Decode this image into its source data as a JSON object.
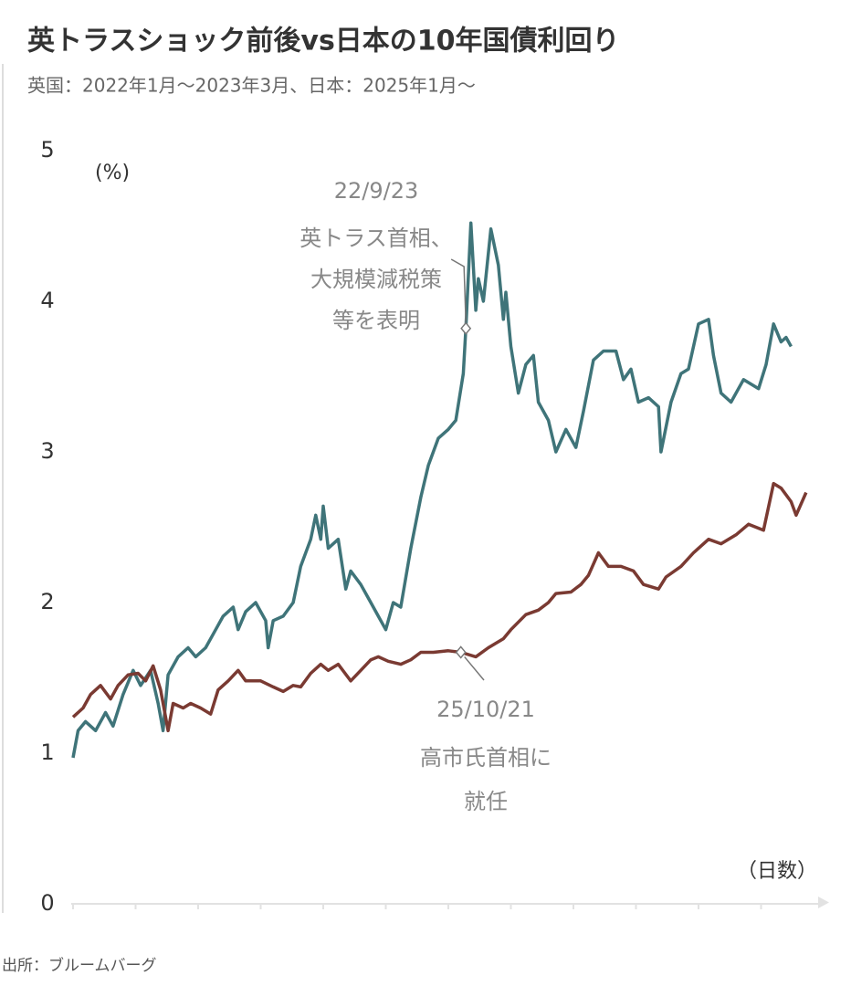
{
  "chart_data": {
    "type": "line",
    "title": "英トラスショック前後vs日本の10年国債利回り",
    "subtitle": "英国：2022年1月～2023年3月、日本：2025年1月～",
    "y_label": "(%)",
    "x_label": "（日数）",
    "source": "出所：ブルームバーグ",
    "ylim": [
      0,
      5
    ],
    "yticks": [
      0,
      1,
      2,
      3,
      4,
      5
    ],
    "xlim": [
      0,
      300
    ],
    "xticks": [
      0,
      25,
      50,
      75,
      100,
      125,
      150,
      175,
      200,
      225,
      250,
      275
    ],
    "grid": false,
    "series": [
      {
        "color": "#3f7479",
        "x": [
          0,
          2,
          5,
          9,
          13,
          16,
          20,
          24,
          27,
          31,
          34,
          36,
          38,
          42,
          46,
          49,
          53,
          57,
          60,
          64,
          66,
          69,
          73,
          77,
          78,
          80,
          84,
          88,
          91,
          95,
          97,
          99,
          100,
          102,
          106,
          109,
          111,
          115,
          119,
          122,
          125,
          128,
          131,
          135,
          139,
          142,
          146,
          150,
          153,
          156,
          157,
          159,
          161,
          162,
          164,
          167,
          170,
          172,
          173,
          175,
          178,
          181,
          184,
          186,
          190,
          193,
          197,
          201,
          204,
          208,
          212,
          217,
          220,
          223,
          226,
          230,
          234,
          235,
          239,
          243,
          246,
          250,
          254,
          256,
          259,
          263,
          266,
          268,
          274,
          277,
          280,
          283,
          285,
          287
        ],
        "values": [
          0.97,
          1.15,
          1.21,
          1.15,
          1.27,
          1.18,
          1.39,
          1.55,
          1.45,
          1.55,
          1.33,
          1.15,
          1.52,
          1.64,
          1.7,
          1.64,
          1.7,
          1.82,
          1.91,
          1.97,
          1.82,
          1.94,
          2.0,
          1.88,
          1.7,
          1.88,
          1.91,
          2.0,
          2.24,
          2.42,
          2.58,
          2.42,
          2.64,
          2.36,
          2.42,
          2.09,
          2.21,
          2.12,
          2.0,
          1.91,
          1.82,
          2.0,
          1.97,
          2.36,
          2.7,
          2.91,
          3.09,
          3.15,
          3.21,
          3.52,
          3.82,
          4.52,
          3.94,
          4.15,
          4.0,
          4.48,
          4.24,
          3.88,
          4.06,
          3.7,
          3.39,
          3.58,
          3.64,
          3.33,
          3.21,
          3.0,
          3.15,
          3.03,
          3.27,
          3.61,
          3.67,
          3.67,
          3.48,
          3.55,
          3.33,
          3.36,
          3.3,
          3.0,
          3.33,
          3.52,
          3.55,
          3.85,
          3.88,
          3.64,
          3.39,
          3.33,
          3.42,
          3.48,
          3.42,
          3.58,
          3.85,
          3.73,
          3.76,
          3.7
        ]
      },
      {
        "color": "#7a3a32",
        "x": [
          0,
          4,
          7,
          11,
          15,
          18,
          22,
          26,
          29,
          32,
          35,
          38,
          40,
          44,
          47,
          51,
          55,
          58,
          62,
          66,
          69,
          75,
          80,
          84,
          88,
          91,
          95,
          99,
          102,
          106,
          111,
          115,
          119,
          122,
          126,
          131,
          135,
          139,
          144,
          150,
          155,
          161,
          166,
          172,
          175,
          181,
          186,
          190,
          193,
          199,
          203,
          206,
          210,
          214,
          219,
          224,
          228,
          234,
          237,
          243,
          248,
          254,
          259,
          265,
          270,
          276,
          280,
          283,
          287,
          289,
          293
        ],
        "values": [
          1.24,
          1.3,
          1.39,
          1.45,
          1.36,
          1.45,
          1.52,
          1.53,
          1.48,
          1.58,
          1.42,
          1.15,
          1.33,
          1.3,
          1.33,
          1.3,
          1.26,
          1.42,
          1.48,
          1.55,
          1.48,
          1.48,
          1.44,
          1.41,
          1.45,
          1.44,
          1.53,
          1.59,
          1.55,
          1.59,
          1.48,
          1.55,
          1.62,
          1.64,
          1.61,
          1.59,
          1.62,
          1.67,
          1.67,
          1.68,
          1.67,
          1.64,
          1.7,
          1.76,
          1.82,
          1.92,
          1.95,
          2.0,
          2.06,
          2.07,
          2.12,
          2.18,
          2.33,
          2.24,
          2.24,
          2.21,
          2.12,
          2.09,
          2.17,
          2.24,
          2.33,
          2.42,
          2.39,
          2.45,
          2.52,
          2.48,
          2.79,
          2.76,
          2.67,
          2.58,
          2.73
        ]
      }
    ],
    "annotations": [
      {
        "date": "22/9/23",
        "text": [
          "英トラス首相、",
          "大規模減税策",
          "等を表明"
        ]
      },
      {
        "date": "25/10/21",
        "text": [
          "高市氏首相に",
          "就任"
        ]
      }
    ]
  }
}
